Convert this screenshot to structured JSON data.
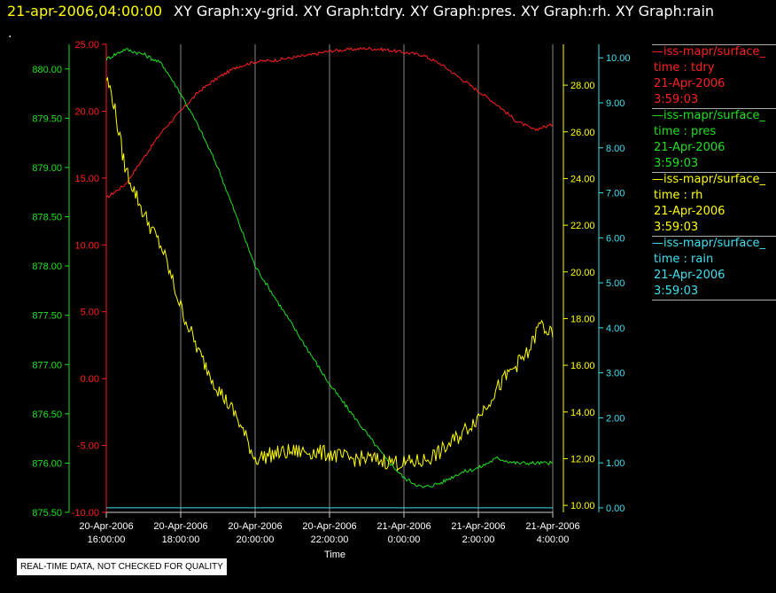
{
  "header": {
    "timestamp": "21-apr-2006,04:00:00",
    "graph_list": "XY Graph:xy-grid.  XY Graph:tdry.  XY Graph:pres.  XY Graph:rh.  XY Graph:rain",
    "dot": "."
  },
  "legend": {
    "entries": [
      {
        "source": "—iss-mapr/surface_",
        "var": "time : tdry",
        "date": "21-Apr-2006",
        "time": "3:59:03",
        "color": "#ff2020"
      },
      {
        "source": "—iss-mapr/surface_",
        "var": "time : pres",
        "date": "21-Apr-2006",
        "time": "3:59:03",
        "color": "#20e020"
      },
      {
        "source": "—iss-mapr/surface_",
        "var": "time : rh",
        "date": "21-Apr-2006",
        "time": "3:59:03",
        "color": "#ffff00"
      },
      {
        "source": "—iss-mapr/surface_",
        "var": "time : rain",
        "date": "21-Apr-2006",
        "time": "3:59:03",
        "color": "#40e0f0"
      }
    ]
  },
  "footer": {
    "qc_note": "REAL-TIME DATA, NOT CHECKED FOR QUALITY"
  },
  "chart_data": {
    "type": "line",
    "xlabel": "Time",
    "x_ticks": [
      {
        "d": "20-Apr-2006",
        "t": "16:00:00"
      },
      {
        "d": "20-Apr-2006",
        "t": "18:00:00"
      },
      {
        "d": "20-Apr-2006",
        "t": "20:00:00"
      },
      {
        "d": "20-Apr-2006",
        "t": "22:00:00"
      },
      {
        "d": "21-Apr-2006",
        "t": "0:00:00"
      },
      {
        "d": "21-Apr-2006",
        "t": "2:00:00"
      },
      {
        "d": "21-Apr-2006",
        "t": "4:00:00"
      }
    ],
    "xlim": [
      "20-Apr-2006 16:00:00",
      "21-Apr-2006 4:00:00"
    ],
    "grid": "vertical",
    "axes": {
      "tdry": {
        "color": "#ff2020",
        "ylim": [
          -10,
          25
        ],
        "ticks": [
          "-10.00",
          "-5.00",
          "0.00",
          "5.00",
          "10.00",
          "15.00",
          "20.00",
          "25.00"
        ]
      },
      "pres": {
        "color": "#20e020",
        "ylim": [
          875.5,
          880.25
        ],
        "ticks": [
          "875.50",
          "876.00",
          "876.50",
          "877.00",
          "877.50",
          "878.00",
          "878.50",
          "879.00",
          "879.50",
          "880.00"
        ]
      },
      "rh": {
        "color": "#ffff00",
        "ylim": [
          9.7,
          29.75
        ],
        "ticks": [
          "10.00",
          "12.00",
          "14.00",
          "16.00",
          "18.00",
          "20.00",
          "22.00",
          "24.00",
          "26.00",
          "28.00"
        ]
      },
      "rain": {
        "color": "#40e0f0",
        "ylim": [
          -0.1,
          10.3
        ],
        "ticks": [
          "0.00",
          "1.00",
          "2.00",
          "3.00",
          "4.00",
          "5.00",
          "6.00",
          "7.00",
          "8.00",
          "9.00",
          "10.00"
        ]
      }
    },
    "series": [
      {
        "name": "time : tdry",
        "axis": "tdry",
        "color": "#ff2020",
        "x": [
          "20-Apr 16:00",
          "20-Apr 16:30",
          "20-Apr 17:00",
          "20-Apr 17:30",
          "20-Apr 18:00",
          "20-Apr 18:30",
          "20-Apr 19:00",
          "20-Apr 19:30",
          "20-Apr 20:00",
          "20-Apr 20:30",
          "20-Apr 21:00",
          "20-Apr 21:30",
          "20-Apr 22:00",
          "20-Apr 22:30",
          "20-Apr 23:00",
          "20-Apr 23:30",
          "21-Apr 0:00",
          "21-Apr 0:30",
          "21-Apr 1:00",
          "21-Apr 1:30",
          "21-Apr 2:00",
          "21-Apr 2:30",
          "21-Apr 3:00",
          "21-Apr 3:30",
          "21-Apr 4:00"
        ],
        "y": [
          13.5,
          14.5,
          16.5,
          18.5,
          20.0,
          21.5,
          22.5,
          23.3,
          23.7,
          23.8,
          24.0,
          24.2,
          24.5,
          24.6,
          24.7,
          24.6,
          24.4,
          24.2,
          23.5,
          22.5,
          21.5,
          20.5,
          19.3,
          18.6,
          19.0
        ]
      },
      {
        "name": "time : pres",
        "axis": "pres",
        "color": "#20e020",
        "x": [
          "20-Apr 16:00",
          "20-Apr 16:30",
          "20-Apr 17:00",
          "20-Apr 17:30",
          "20-Apr 18:00",
          "20-Apr 18:30",
          "20-Apr 19:00",
          "20-Apr 19:30",
          "20-Apr 20:00",
          "20-Apr 20:30",
          "20-Apr 21:00",
          "20-Apr 21:30",
          "20-Apr 22:00",
          "20-Apr 22:30",
          "20-Apr 23:00",
          "20-Apr 23:30",
          "21-Apr 0:00",
          "21-Apr 0:30",
          "21-Apr 1:00",
          "21-Apr 1:30",
          "21-Apr 2:00",
          "21-Apr 2:30",
          "21-Apr 3:00",
          "21-Apr 3:30",
          "21-Apr 4:00"
        ],
        "y": [
          880.1,
          880.2,
          880.15,
          880.05,
          879.75,
          879.4,
          879.0,
          878.5,
          878.0,
          877.7,
          877.4,
          877.1,
          876.8,
          876.55,
          876.3,
          876.05,
          875.85,
          875.75,
          875.8,
          875.9,
          875.95,
          876.05,
          876.0,
          876.0,
          876.0
        ]
      },
      {
        "name": "time : rh",
        "axis": "rh",
        "color": "#ffff00",
        "x": [
          "20-Apr 16:00",
          "20-Apr 16:10",
          "20-Apr 16:20",
          "20-Apr 16:30",
          "20-Apr 17:00",
          "20-Apr 17:30",
          "20-Apr 18:00",
          "20-Apr 18:30",
          "20-Apr 19:00",
          "20-Apr 19:30",
          "20-Apr 20:00",
          "20-Apr 20:30",
          "20-Apr 21:00",
          "20-Apr 21:30",
          "20-Apr 22:00",
          "20-Apr 22:30",
          "20-Apr 23:00",
          "20-Apr 23:30",
          "21-Apr 0:00",
          "21-Apr 0:30",
          "21-Apr 1:00",
          "21-Apr 1:30",
          "21-Apr 2:00",
          "21-Apr 2:30",
          "21-Apr 3:00",
          "21-Apr 3:20",
          "21-Apr 3:40",
          "21-Apr 4:00"
        ],
        "y": [
          28.3,
          27.5,
          26.0,
          24.5,
          22.5,
          21.0,
          18.5,
          16.5,
          15.0,
          13.8,
          12.0,
          12.2,
          12.3,
          12.3,
          12.2,
          12.0,
          12.0,
          11.9,
          11.8,
          11.9,
          12.3,
          13.0,
          13.8,
          15.0,
          16.0,
          16.5,
          17.8,
          17.2
        ]
      },
      {
        "name": "time : rain",
        "axis": "rain",
        "color": "#40e0f0",
        "x": [
          "20-Apr 16:00",
          "21-Apr 4:00"
        ],
        "y": [
          0.0,
          0.0
        ]
      }
    ]
  }
}
